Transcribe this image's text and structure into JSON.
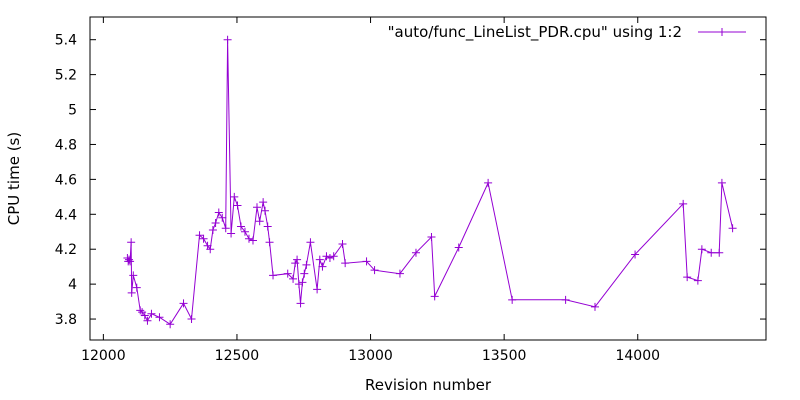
{
  "chart_data": {
    "type": "line",
    "title": "",
    "xlabel": "Revision number",
    "ylabel": "CPU time (s)",
    "xlim": [
      11950,
      14480
    ],
    "ylim": [
      3.68,
      5.53
    ],
    "x_ticks": [
      12000,
      12500,
      13000,
      13500,
      14000
    ],
    "x_tick_labels": [
      "12000",
      "12500",
      "13000",
      "13500",
      "14000"
    ],
    "y_ticks": [
      3.8,
      4,
      4.2,
      4.4,
      4.6,
      4.8,
      5,
      5.2,
      5.4
    ],
    "y_tick_labels": [
      "3.8",
      "4",
      "4.2",
      "4.4",
      "4.6",
      "4.8",
      "5",
      "5.2",
      "5.4"
    ],
    "grid": false,
    "legend_position": "top-right",
    "series": [
      {
        "name": "\"auto/func_LineList_PDR.cpu\" using 1:2",
        "color": "#9400d3",
        "marker": "plus",
        "points": [
          [
            12090,
            4.15
          ],
          [
            12093,
            4.13
          ],
          [
            12096,
            4.14
          ],
          [
            12100,
            4.13
          ],
          [
            12104,
            4.24
          ],
          [
            12106,
            3.95
          ],
          [
            12112,
            4.05
          ],
          [
            12125,
            3.98
          ],
          [
            12138,
            3.85
          ],
          [
            12145,
            3.84
          ],
          [
            12155,
            3.82
          ],
          [
            12165,
            3.79
          ],
          [
            12180,
            3.83
          ],
          [
            12210,
            3.81
          ],
          [
            12250,
            3.77
          ],
          [
            12300,
            3.89
          ],
          [
            12330,
            3.8
          ],
          [
            12360,
            4.28
          ],
          [
            12375,
            4.26
          ],
          [
            12390,
            4.22
          ],
          [
            12400,
            4.2
          ],
          [
            12410,
            4.31
          ],
          [
            12420,
            4.35
          ],
          [
            12432,
            4.41
          ],
          [
            12445,
            4.38
          ],
          [
            12458,
            4.32
          ],
          [
            12465,
            5.4
          ],
          [
            12478,
            4.29
          ],
          [
            12490,
            4.5
          ],
          [
            12502,
            4.45
          ],
          [
            12515,
            4.33
          ],
          [
            12530,
            4.3
          ],
          [
            12545,
            4.26
          ],
          [
            12560,
            4.25
          ],
          [
            12575,
            4.44
          ],
          [
            12585,
            4.36
          ],
          [
            12598,
            4.47
          ],
          [
            12605,
            4.42
          ],
          [
            12615,
            4.33
          ],
          [
            12622,
            4.24
          ],
          [
            12635,
            4.05
          ],
          [
            12690,
            4.06
          ],
          [
            12710,
            4.03
          ],
          [
            12718,
            4.12
          ],
          [
            12725,
            4.14
          ],
          [
            12732,
            4.0
          ],
          [
            12738,
            3.89
          ],
          [
            12745,
            4.01
          ],
          [
            12752,
            4.06
          ],
          [
            12760,
            4.11
          ],
          [
            12775,
            4.24
          ],
          [
            12800,
            3.97
          ],
          [
            12810,
            4.14
          ],
          [
            12820,
            4.1
          ],
          [
            12835,
            4.16
          ],
          [
            12848,
            4.15
          ],
          [
            12862,
            4.16
          ],
          [
            12895,
            4.23
          ],
          [
            12905,
            4.12
          ],
          [
            12985,
            4.13
          ],
          [
            13015,
            4.08
          ],
          [
            13110,
            4.06
          ],
          [
            13170,
            4.18
          ],
          [
            13228,
            4.27
          ],
          [
            13240,
            3.93
          ],
          [
            13330,
            4.21
          ],
          [
            13440,
            4.58
          ],
          [
            13530,
            3.91
          ],
          [
            13730,
            3.91
          ],
          [
            13840,
            3.87
          ],
          [
            13990,
            4.17
          ],
          [
            14170,
            4.46
          ],
          [
            14185,
            4.04
          ],
          [
            14225,
            4.02
          ],
          [
            14240,
            4.2
          ],
          [
            14275,
            4.18
          ],
          [
            14305,
            4.18
          ],
          [
            14315,
            4.58
          ],
          [
            14355,
            4.32
          ]
        ]
      }
    ]
  }
}
